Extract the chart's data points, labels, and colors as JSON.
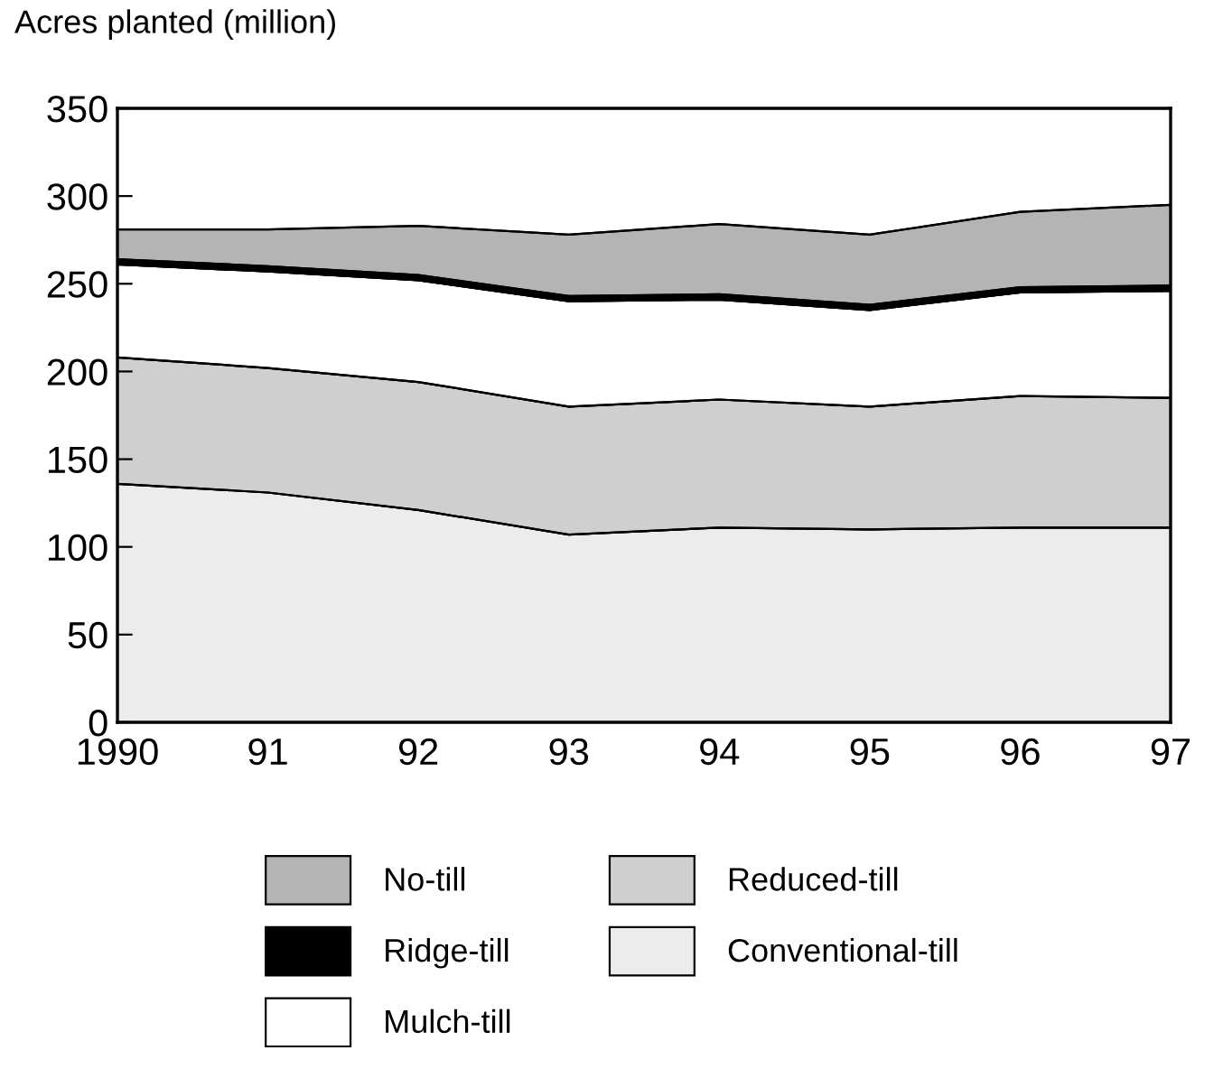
{
  "chart_data": {
    "type": "area",
    "stacked": true,
    "ylabel": "Acres planted (million)",
    "x": [
      1990,
      1991,
      1992,
      1993,
      1994,
      1995,
      1996,
      1997
    ],
    "xlim": [
      1990,
      1997
    ],
    "xticks": [
      1990,
      {
        "value": 1991,
        "label": "91"
      },
      {
        "value": 1992,
        "label": "92"
      },
      {
        "value": 1993,
        "label": "93"
      },
      {
        "value": 1994,
        "label": "94"
      },
      {
        "value": 1995,
        "label": "95"
      },
      {
        "value": 1996,
        "label": "96"
      },
      {
        "value": 1997,
        "label": "97"
      }
    ],
    "ylim": [
      0,
      350
    ],
    "yticks": [
      0,
      50,
      100,
      150,
      200,
      250,
      300,
      350
    ],
    "series": [
      {
        "name": "Conventional-till",
        "color": "#ececec",
        "values": [
          136,
          131,
          121,
          107,
          111,
          110,
          111,
          111
        ]
      },
      {
        "name": "Reduced-till",
        "color": "#cfcfcf",
        "values": [
          72,
          71,
          73,
          73,
          73,
          70,
          75,
          74
        ]
      },
      {
        "name": "Mulch-till",
        "color": "#ffffff",
        "values": [
          53,
          55,
          58,
          60,
          57,
          55,
          59,
          61
        ]
      },
      {
        "name": "Ridge-till",
        "color": "#000000",
        "values": [
          3,
          3,
          3,
          3,
          3,
          3,
          3,
          3
        ]
      },
      {
        "name": "No-till",
        "color": "#b4b4b4",
        "values": [
          17,
          21,
          28,
          35,
          40,
          40,
          43,
          46
        ]
      }
    ],
    "grid": false,
    "legend": "bottom"
  }
}
